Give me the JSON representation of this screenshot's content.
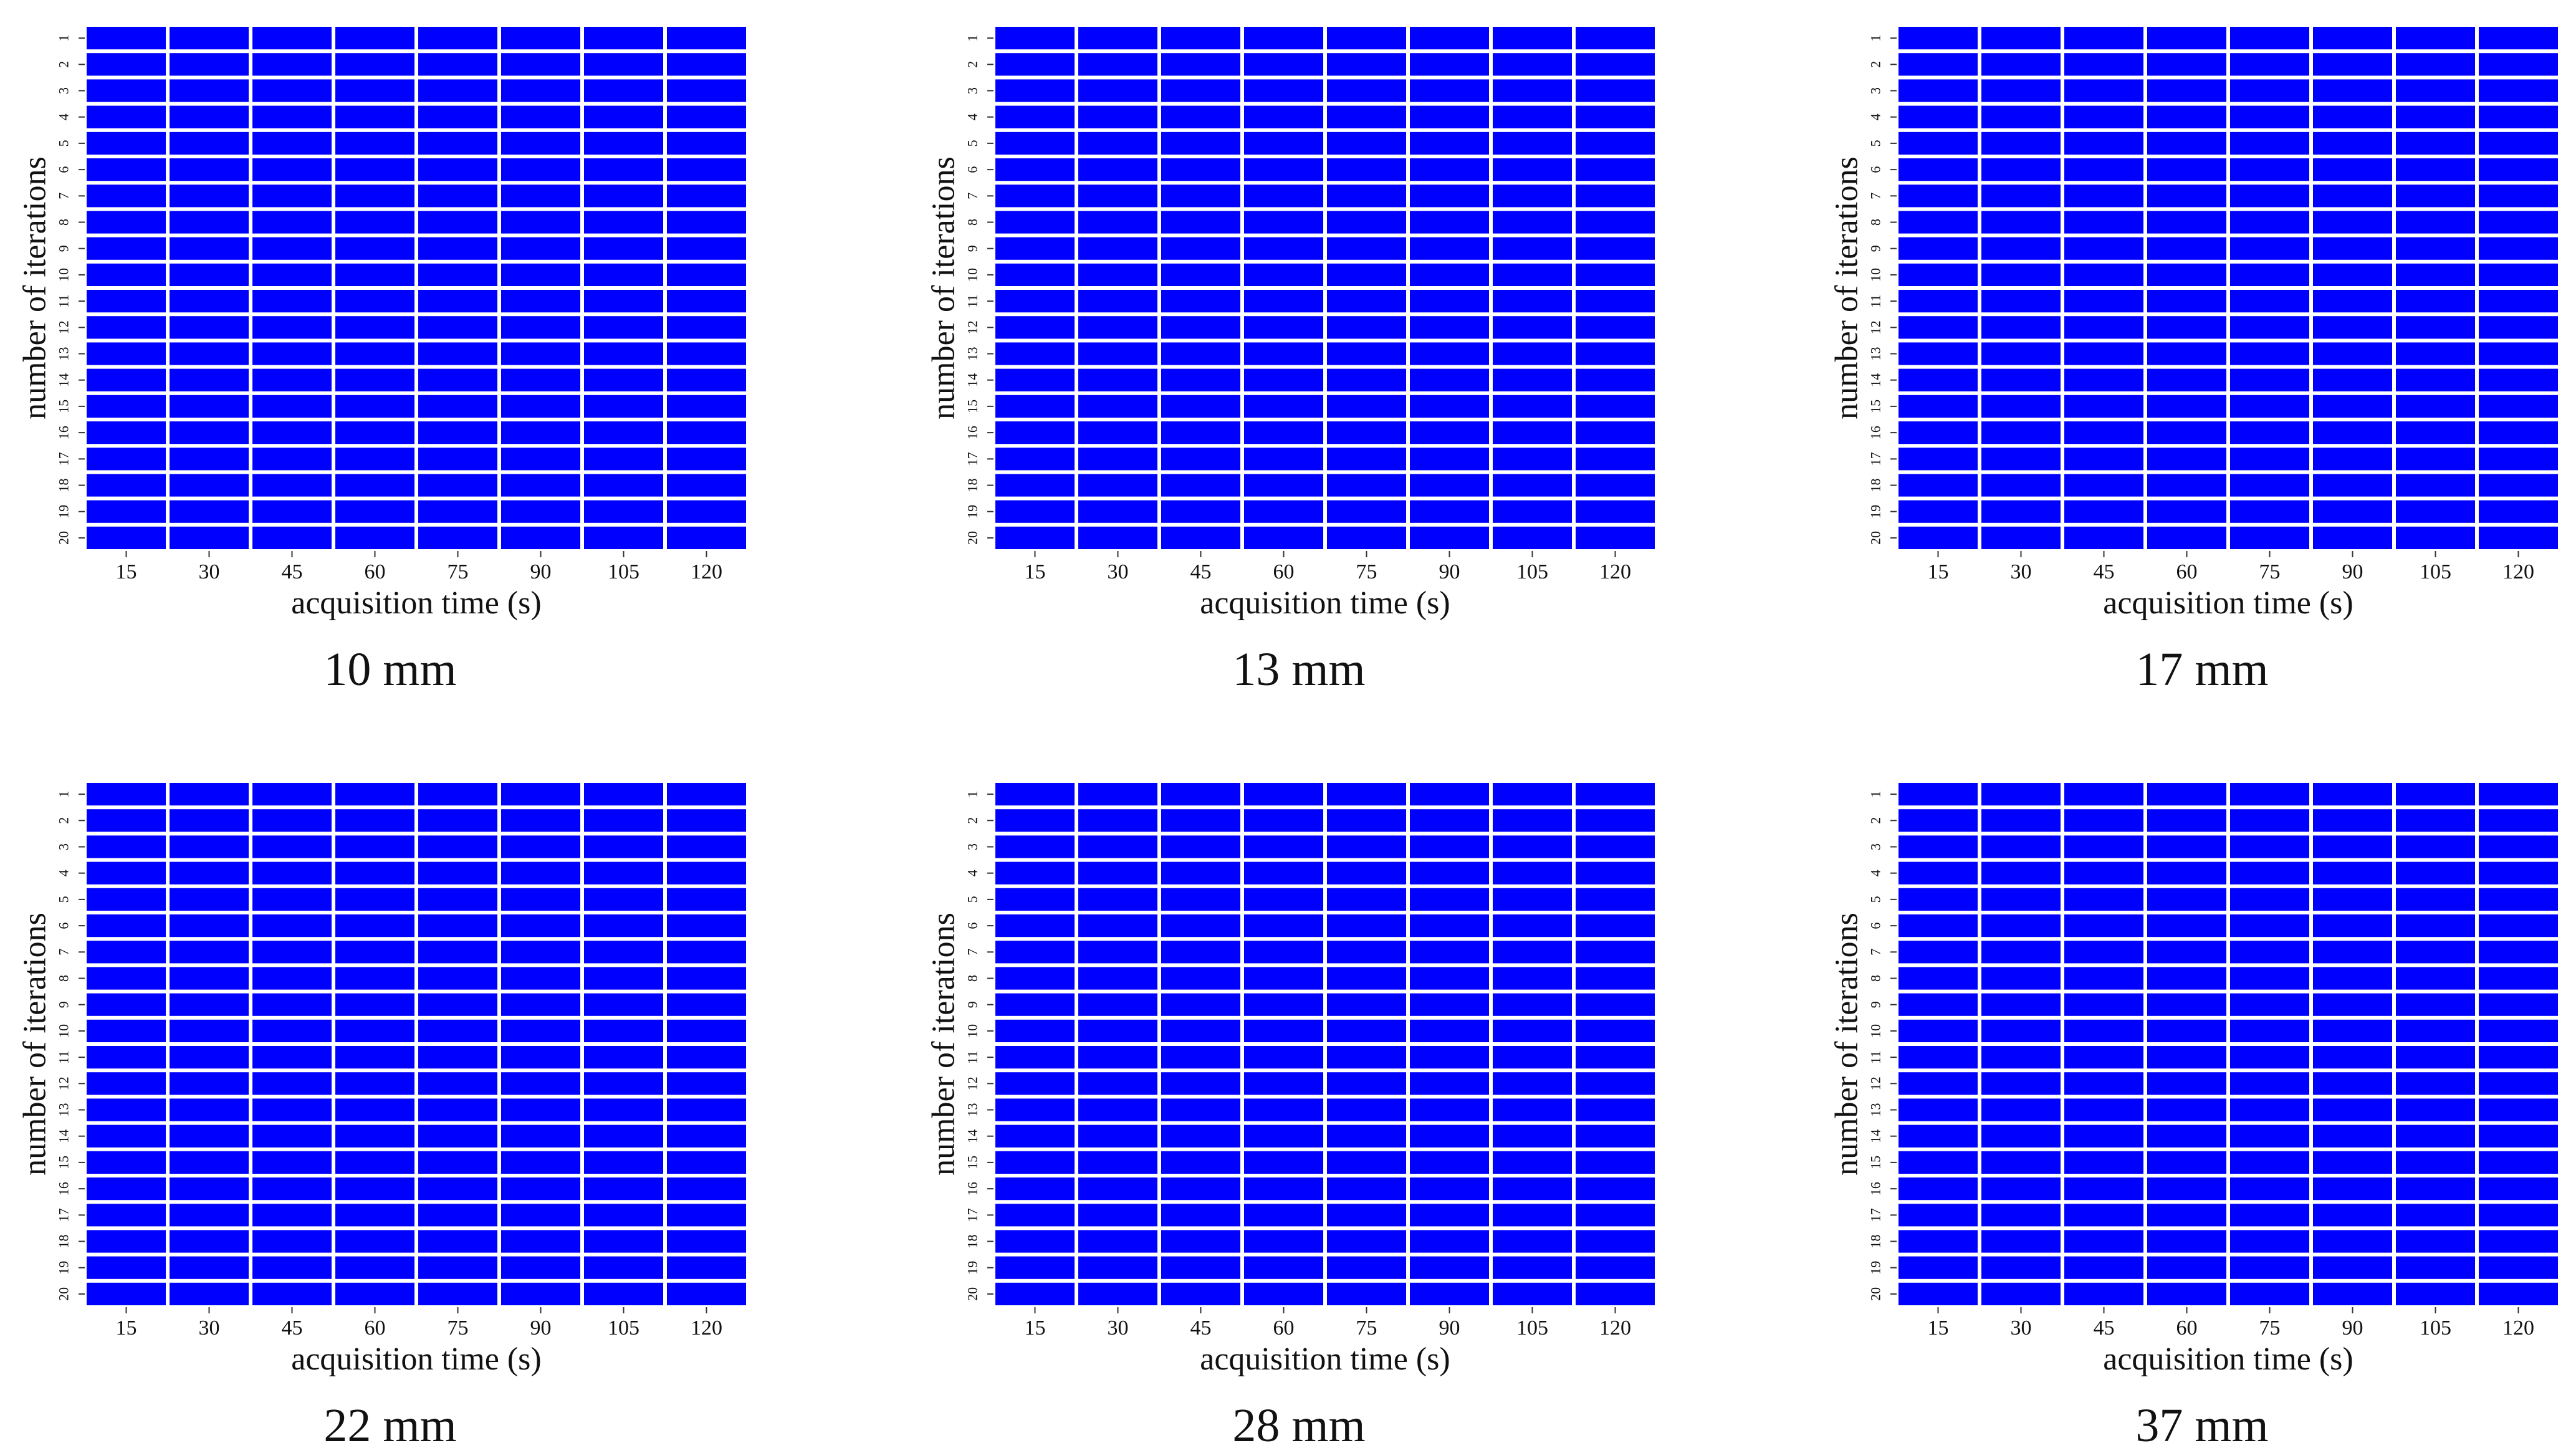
{
  "cell_color": "#0000ff",
  "gridline_color": "#ffffff",
  "chart_data": [
    {
      "type": "heatmap",
      "title": "10 mm",
      "xlabel": "acquisition time (s)",
      "ylabel": "number of iterations",
      "x_categories": [
        "15",
        "30",
        "45",
        "60",
        "75",
        "90",
        "105",
        "120"
      ],
      "y_categories": [
        "1",
        "2",
        "3",
        "4",
        "5",
        "6",
        "7",
        "8",
        "9",
        "10",
        "11",
        "12",
        "13",
        "14",
        "15",
        "16",
        "17",
        "18",
        "19",
        "20"
      ],
      "grid": true,
      "uniform_cell_color": "#0000ff"
    },
    {
      "type": "heatmap",
      "title": "13 mm",
      "xlabel": "acquisition time (s)",
      "ylabel": "number of iterations",
      "x_categories": [
        "15",
        "30",
        "45",
        "60",
        "75",
        "90",
        "105",
        "120"
      ],
      "y_categories": [
        "1",
        "2",
        "3",
        "4",
        "5",
        "6",
        "7",
        "8",
        "9",
        "10",
        "11",
        "12",
        "13",
        "14",
        "15",
        "16",
        "17",
        "18",
        "19",
        "20"
      ],
      "grid": true,
      "uniform_cell_color": "#0000ff"
    },
    {
      "type": "heatmap",
      "title": "17 mm",
      "xlabel": "acquisition time (s)",
      "ylabel": "number of iterations",
      "x_categories": [
        "15",
        "30",
        "45",
        "60",
        "75",
        "90",
        "105",
        "120"
      ],
      "y_categories": [
        "1",
        "2",
        "3",
        "4",
        "5",
        "6",
        "7",
        "8",
        "9",
        "10",
        "11",
        "12",
        "13",
        "14",
        "15",
        "16",
        "17",
        "18",
        "19",
        "20"
      ],
      "grid": true,
      "uniform_cell_color": "#0000ff"
    },
    {
      "type": "heatmap",
      "title": "22 mm",
      "xlabel": "acquisition time (s)",
      "ylabel": "number of iterations",
      "x_categories": [
        "15",
        "30",
        "45",
        "60",
        "75",
        "90",
        "105",
        "120"
      ],
      "y_categories": [
        "1",
        "2",
        "3",
        "4",
        "5",
        "6",
        "7",
        "8",
        "9",
        "10",
        "11",
        "12",
        "13",
        "14",
        "15",
        "16",
        "17",
        "18",
        "19",
        "20"
      ],
      "grid": true,
      "uniform_cell_color": "#0000ff"
    },
    {
      "type": "heatmap",
      "title": "28 mm",
      "xlabel": "acquisition time (s)",
      "ylabel": "number of iterations",
      "x_categories": [
        "15",
        "30",
        "45",
        "60",
        "75",
        "90",
        "105",
        "120"
      ],
      "y_categories": [
        "1",
        "2",
        "3",
        "4",
        "5",
        "6",
        "7",
        "8",
        "9",
        "10",
        "11",
        "12",
        "13",
        "14",
        "15",
        "16",
        "17",
        "18",
        "19",
        "20"
      ],
      "grid": true,
      "uniform_cell_color": "#0000ff"
    },
    {
      "type": "heatmap",
      "title": "37 mm",
      "xlabel": "acquisition time (s)",
      "ylabel": "number of iterations",
      "x_categories": [
        "15",
        "30",
        "45",
        "60",
        "75",
        "90",
        "105",
        "120"
      ],
      "y_categories": [
        "1",
        "2",
        "3",
        "4",
        "5",
        "6",
        "7",
        "8",
        "9",
        "10",
        "11",
        "12",
        "13",
        "14",
        "15",
        "16",
        "17",
        "18",
        "19",
        "20"
      ],
      "grid": true,
      "uniform_cell_color": "#0000ff"
    }
  ]
}
